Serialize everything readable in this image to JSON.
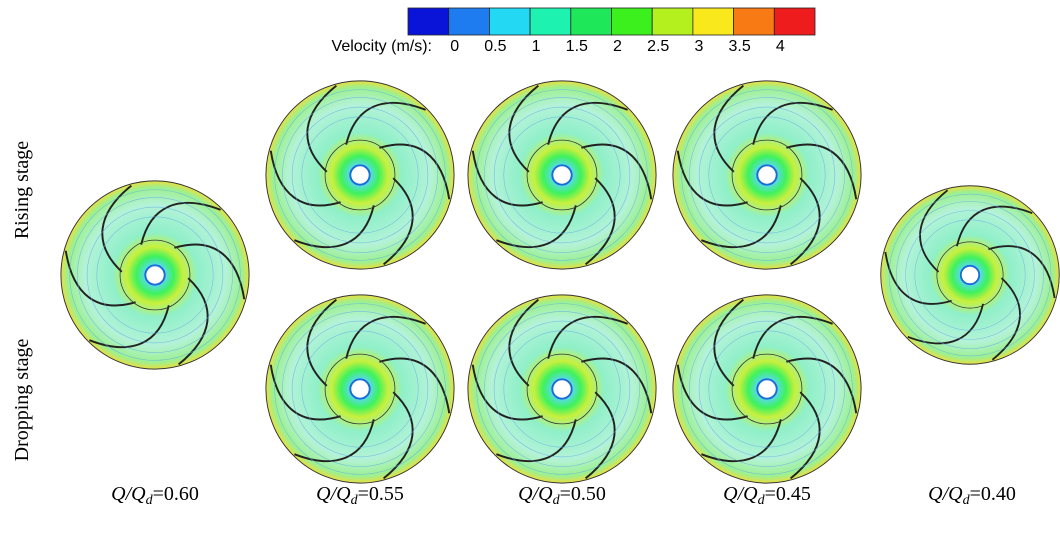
{
  "colorbar": {
    "title": "Velocity (m/s):",
    "colors": [
      "#0a14d8",
      "#1f7cf0",
      "#22d8f2",
      "#1ef2b0",
      "#1ee85a",
      "#3cf01e",
      "#b4f01e",
      "#f8e81c",
      "#f87a14",
      "#ee1c1c"
    ],
    "labels": [
      "0",
      "0.5",
      "1",
      "1.5",
      "2",
      "2.5",
      "3",
      "3.5",
      "4"
    ]
  },
  "rows": [
    "Rising stage",
    "Dropping stage"
  ],
  "captions": [
    {
      "ratio": "Q/Q",
      "subscript": "d",
      "value": "=0.60"
    },
    {
      "ratio": "Q/Q",
      "subscript": "d",
      "value": "=0.55"
    },
    {
      "ratio": "Q/Q",
      "subscript": "d",
      "value": "=0.50"
    },
    {
      "ratio": "Q/Q",
      "subscript": "d",
      "value": "=0.45"
    },
    {
      "ratio": "Q/Q",
      "subscript": "d",
      "value": "=0.40"
    }
  ]
}
